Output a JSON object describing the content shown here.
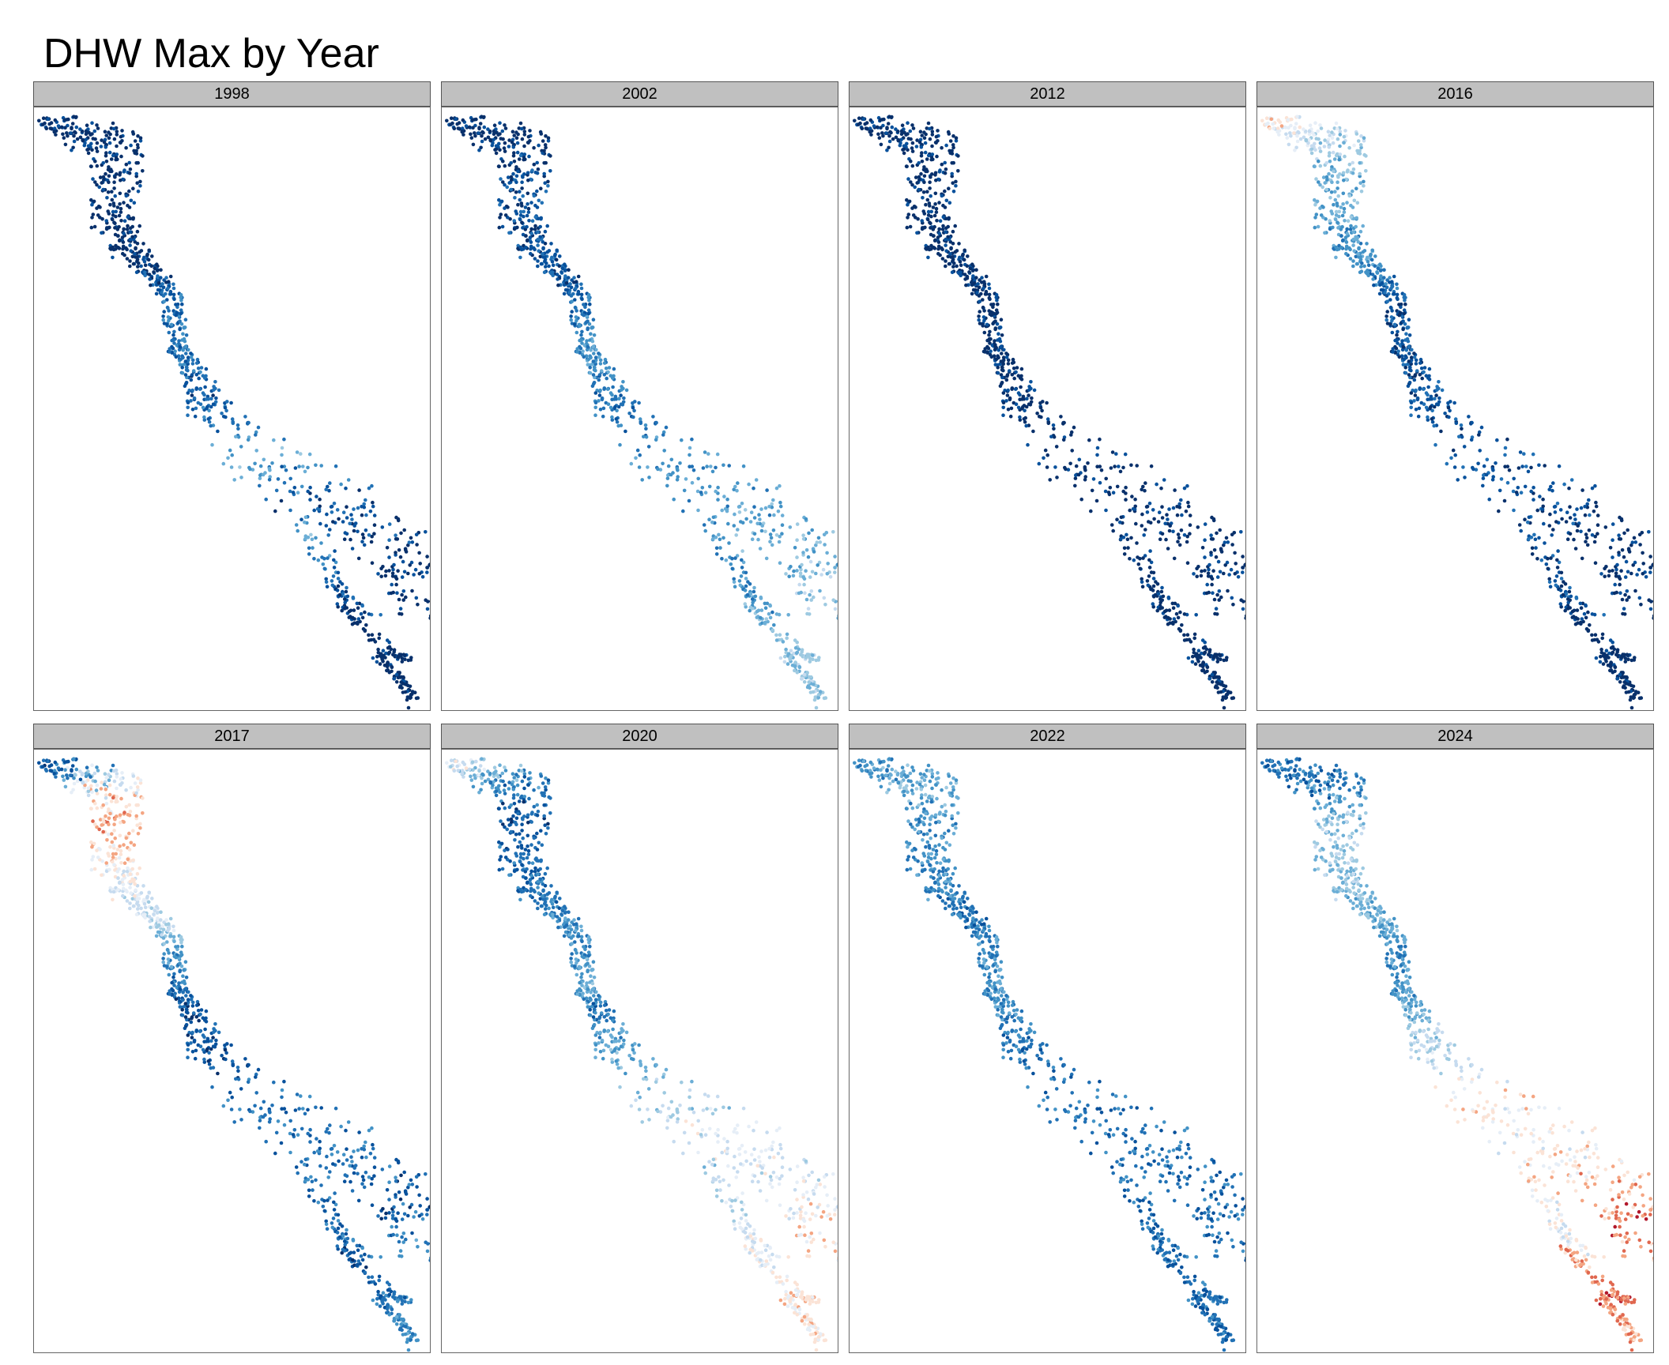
{
  "title": "DHW Max by Year",
  "palette": [
    "#08306b",
    "#08519c",
    "#2171b5",
    "#4292c6",
    "#6baed6",
    "#9ecae1",
    "#c6dbef",
    "#e6eef7",
    "#fbe3d6",
    "#f4a582",
    "#e0674f",
    "#b2182b"
  ],
  "facets": [
    {
      "year": "1998",
      "profile": [
        0,
        0,
        0,
        0,
        0,
        0,
        0,
        0,
        1,
        2,
        2,
        2,
        1,
        2,
        4,
        1,
        1,
        0,
        0,
        0
      ]
    },
    {
      "year": "2002",
      "profile": [
        0,
        0,
        0,
        0,
        1,
        1,
        1,
        1,
        1,
        2,
        3,
        3,
        2,
        2,
        3,
        3,
        4,
        4,
        5,
        5
      ]
    },
    {
      "year": "2012",
      "profile": [
        0,
        0,
        0,
        0,
        0,
        0,
        0,
        0,
        0,
        0,
        0,
        0,
        0,
        0,
        0,
        0,
        0,
        0,
        0,
        0
      ]
    },
    {
      "year": "2016",
      "profile": [
        8,
        7,
        6,
        5,
        4,
        4,
        3,
        3,
        2,
        1,
        1,
        1,
        1,
        1,
        1,
        1,
        0,
        0,
        0,
        0
      ]
    },
    {
      "year": "2017",
      "profile": [
        1,
        2,
        6,
        8,
        9,
        8,
        7,
        6,
        6,
        4,
        2,
        1,
        1,
        1,
        2,
        2,
        2,
        1,
        2,
        3
      ]
    },
    {
      "year": "2020",
      "profile": [
        7,
        5,
        3,
        2,
        1,
        2,
        2,
        2,
        3,
        3,
        4,
        2,
        3,
        4,
        5,
        7,
        6,
        7,
        8,
        8
      ]
    },
    {
      "year": "2022",
      "profile": [
        3,
        3,
        4,
        4,
        3,
        3,
        3,
        2,
        2,
        3,
        3,
        3,
        2,
        2,
        2,
        2,
        2,
        2,
        2,
        2
      ]
    },
    {
      "year": "2024",
      "profile": [
        2,
        2,
        2,
        3,
        5,
        5,
        5,
        4,
        4,
        3,
        3,
        4,
        5,
        6,
        8,
        7,
        8,
        9,
        10,
        9
      ]
    }
  ]
}
